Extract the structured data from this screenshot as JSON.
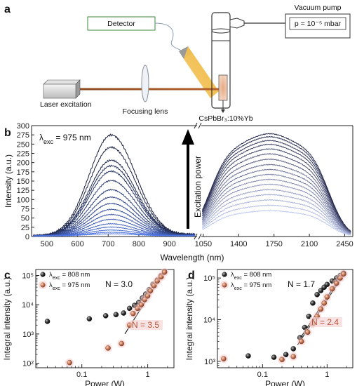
{
  "setup": {
    "panel_label": "a",
    "vacuum_label": "Vacuum pump",
    "pressure_text": "p = 10⁻⁵ mbar",
    "detector_label": "Detector",
    "laser_label": "Laser excitation",
    "lens_label": "Focusing lens",
    "sample_label": "CsPbBr₃:10%Yb"
  },
  "chart_data": [
    {
      "id": "b",
      "panel_label": "b",
      "type": "line",
      "title": "",
      "annotation": "λ",
      "annotation_sub": "exc",
      "annotation_rest": " = 975 nm",
      "arrow_label": "Excitation power",
      "xlabel": "Wavelength (nm)",
      "ylabel": "Intensity (a.u.)",
      "ylim": [
        0,
        300
      ],
      "yticks": [
        0,
        25,
        50,
        75,
        100,
        125,
        150,
        175,
        200,
        225,
        250,
        275,
        300
      ],
      "broken_x_axis": true,
      "segments": [
        {
          "xlim": [
            450,
            990
          ],
          "xticks": [
            "500",
            "600",
            "700",
            "800",
            "900"
          ],
          "tick_values": [
            500,
            600,
            700,
            800,
            900
          ]
        },
        {
          "xlim": [
            1030,
            2530
          ],
          "xticks": [
            "1050",
            "1400",
            "1750",
            "2100",
            "2450"
          ],
          "tick_values": [
            1050,
            1400,
            1750,
            2100,
            2450
          ]
        }
      ],
      "series_visible_peaks": {
        "visible_peak_band": [
          273,
          240,
          205,
          190,
          175,
          150,
          125,
          105,
          88,
          72,
          58,
          45,
          33,
          24,
          16,
          10,
          6
        ],
        "nir_band": [
          270,
          262,
          252,
          242,
          230,
          217,
          203,
          189,
          176,
          163,
          150,
          137,
          123,
          110,
          96,
          82,
          68
        ]
      },
      "peak_position_nm": {
        "visible": 710,
        "nir": 1700
      }
    },
    {
      "id": "c",
      "panel_label": "c",
      "type": "scatter",
      "title": "",
      "xlabel": "Power (W)",
      "ylabel": "Integral intensity (a.u.)",
      "x_scale": "log",
      "y_scale": "log",
      "xlim": [
        0.02,
        2.5
      ],
      "ylim": [
        70,
        160000
      ],
      "xticks": [
        "0.1",
        "1"
      ],
      "xtick_values": [
        0.1,
        1
      ],
      "yticks": [
        "10²",
        "10³",
        "10⁴",
        "10⁵"
      ],
      "ytick_values": [
        100,
        1000,
        10000,
        100000
      ],
      "legend_placement": "top-left",
      "series": [
        {
          "name": "λ",
          "name_sub": "exc",
          "name_rest": " = 808 nm",
          "color": "#222222",
          "x": [
            0.03,
            0.13,
            0.23,
            0.33,
            0.43,
            0.53,
            0.63,
            0.73,
            0.83,
            0.93,
            1.05,
            1.2,
            1.4,
            1.6,
            1.8
          ],
          "y": [
            2700,
            3300,
            4200,
            4600,
            5200,
            7500,
            9500,
            12000,
            17000,
            23000,
            33000,
            50000,
            70000,
            100000,
            135000
          ]
        },
        {
          "name": "λ",
          "name_sub": "exc",
          "name_rest": " = 975  nm",
          "color": "#c97a58",
          "x": [
            0.065,
            0.25,
            0.4,
            0.53,
            0.6,
            0.7,
            0.8,
            0.9,
            1.0,
            1.1,
            1.25,
            1.4,
            1.6,
            1.8
          ],
          "y": [
            105,
            330,
            470,
            2000,
            5000,
            7500,
            10000,
            15000,
            20000,
            30000,
            45000,
            65000,
            90000,
            130000
          ]
        }
      ],
      "annotations": [
        {
          "text": "N = 3.0",
          "color": "#111111"
        },
        {
          "text": "N = 3.5",
          "color": "#b5533a"
        }
      ],
      "fit_lines": [
        {
          "x": [
            0.65,
            1.8
          ],
          "y": [
            8000,
            140000
          ],
          "color": "#222222"
        },
        {
          "x": [
            0.45,
            1.8
          ],
          "y": [
            1000,
            140000
          ],
          "color": "#222222"
        }
      ]
    },
    {
      "id": "d",
      "panel_label": "d",
      "type": "scatter",
      "title": "",
      "xlabel": "Power (W)",
      "ylabel": "Integral intensity (a.u.)",
      "x_scale": "log",
      "y_scale": "log",
      "xlim": [
        0.02,
        2.5
      ],
      "ylim": [
        700,
        160000
      ],
      "xticks": [
        "0.1",
        "1"
      ],
      "xtick_values": [
        0.1,
        1
      ],
      "yticks": [
        "10³",
        "10⁴",
        "10⁵"
      ],
      "ytick_values": [
        1000,
        10000,
        100000
      ],
      "legend_placement": "top-left",
      "series": [
        {
          "name": "λ",
          "name_sub": "exc",
          "name_rest": " = 808 nm",
          "color": "#222222",
          "x": [
            0.06,
            0.15,
            0.23,
            0.3,
            0.38,
            0.45,
            0.52,
            0.6,
            0.7,
            0.8,
            0.9,
            1.0,
            1.2,
            1.4,
            1.6,
            1.8
          ],
          "y": [
            1350,
            1250,
            1450,
            2000,
            3700,
            6500,
            12000,
            25000,
            40000,
            50000,
            60000,
            70000,
            85000,
            100000,
            115000,
            130000
          ]
        },
        {
          "name": "λ",
          "name_sub": "exc",
          "name_rest": " = 975 nm",
          "color": "#c97a58",
          "x": [
            0.025,
            0.2,
            0.3,
            0.4,
            0.5,
            0.6,
            0.7,
            0.8,
            0.9,
            1.0,
            1.2,
            1.4,
            1.6,
            1.8
          ],
          "y": [
            1150,
            1100,
            1300,
            3000,
            5000,
            8000,
            12000,
            18000,
            25000,
            35000,
            55000,
            75000,
            100000,
            125000
          ]
        }
      ],
      "annotations": [
        {
          "text": "N = 1.7",
          "color": "#111111"
        },
        {
          "text": "N = 2.4",
          "color": "#b5533a"
        }
      ],
      "fit_lines": [
        {
          "x": [
            0.38,
            1.8
          ],
          "y": [
            3500,
            140000
          ],
          "color": "#222222"
        },
        {
          "x": [
            0.35,
            1.8
          ],
          "y": [
            2500,
            120000
          ],
          "color": "#222222"
        }
      ]
    }
  ]
}
